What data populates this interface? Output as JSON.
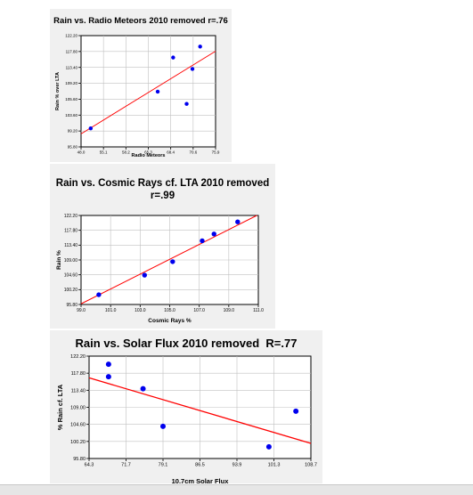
{
  "chart_data": [
    {
      "type": "scatter",
      "title": "Rain vs. Radio Meteors 2010 removed r=.76",
      "xlabel": "Radio Meteors",
      "ylabel": "Rain % over LTA",
      "xlim": [
        48.0,
        75.9
      ],
      "ylim": [
        95.8,
        122.2
      ],
      "xticks": [
        "48.0",
        "55.1",
        "58.2",
        "65.3",
        "68.4",
        "70.6",
        "75.9"
      ],
      "yticks": [
        "95.80",
        "99.20",
        "103.60",
        "105.60",
        "109.20",
        "113.40",
        "117.80",
        "122.20"
      ],
      "points": [
        {
          "x": 50.0,
          "y": 100.2
        },
        {
          "x": 63.9,
          "y": 108.9
        },
        {
          "x": 67.1,
          "y": 117.0
        },
        {
          "x": 69.9,
          "y": 106.0
        },
        {
          "x": 71.1,
          "y": 114.3
        },
        {
          "x": 72.7,
          "y": 119.6
        }
      ],
      "trendline": {
        "x": [
          48.0,
          75.9
        ],
        "y": [
          98.9,
          118.5
        ],
        "color": "#ff0000"
      },
      "point_color": "#0000ee"
    },
    {
      "type": "scatter",
      "title": "Rain vs. Cosmic Rays cf. LTA 2010 removed\nr=.99",
      "xlabel": "Cosmic Rays %",
      "ylabel": "Rain %",
      "xlim": [
        99.0,
        111.0
      ],
      "ylim": [
        95.8,
        122.2
      ],
      "xticks": [
        "99.0",
        "101.0",
        "103.0",
        "105.0",
        "107.0",
        "109.0",
        "111.0"
      ],
      "yticks": [
        "95.80",
        "100.20",
        "104.60",
        "109.00",
        "113.40",
        "117.80",
        "122.20"
      ],
      "points": [
        {
          "x": 100.2,
          "y": 98.7
        },
        {
          "x": 103.3,
          "y": 104.5
        },
        {
          "x": 105.2,
          "y": 108.5
        },
        {
          "x": 107.2,
          "y": 114.7
        },
        {
          "x": 108.0,
          "y": 116.7
        },
        {
          "x": 109.6,
          "y": 120.3
        }
      ],
      "trendline": {
        "x": [
          99.0,
          110.9
        ],
        "y": [
          96.0,
          122.2
        ],
        "color": "#ff0000"
      },
      "point_color": "#0000ee"
    },
    {
      "type": "scatter",
      "title": "Rain vs. Solar Flux 2010 removed  R=.77",
      "xlabel": "10.7cm  Solar Flux",
      "ylabel": "% Rain cf. LTA",
      "xlim": [
        64.3,
        108.7
      ],
      "ylim": [
        95.8,
        122.2
      ],
      "xticks": [
        "64.3",
        "71.7",
        "79.1",
        "86.5",
        "93.9",
        "101.3",
        "108.7"
      ],
      "yticks": [
        "95.80",
        "100.20",
        "104.60",
        "109.00",
        "113.40",
        "117.80",
        "122.20"
      ],
      "points": [
        {
          "x": 68.2,
          "y": 120.1
        },
        {
          "x": 68.2,
          "y": 116.9
        },
        {
          "x": 75.1,
          "y": 113.8
        },
        {
          "x": 79.1,
          "y": 104.1
        },
        {
          "x": 100.3,
          "y": 98.8
        },
        {
          "x": 105.7,
          "y": 108.0
        }
      ],
      "trendline": {
        "x": [
          64.3,
          108.7
        ],
        "y": [
          116.6,
          99.7
        ],
        "color": "#ff0000"
      },
      "point_color": "#0000ee"
    }
  ]
}
